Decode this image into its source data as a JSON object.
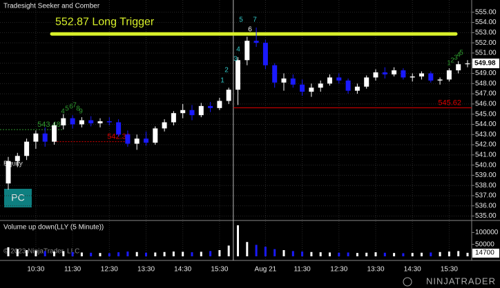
{
  "chart_data": [
    {
      "type": "candlestick",
      "title": "Tradesight Seeker and Comber",
      "categories": [
        null,
        null,
        null,
        "10:30",
        null,
        null,
        null,
        "11:30",
        null,
        null,
        null,
        "12:30",
        null,
        null,
        null,
        "13:30",
        null,
        null,
        null,
        "14:30",
        null,
        null,
        null,
        "15:30",
        null,
        null,
        null,
        null,
        "Aug 21",
        null,
        null,
        null,
        "11:30",
        null,
        null,
        null,
        "12:30",
        null,
        null,
        null,
        "13:30",
        null,
        null,
        null,
        "14:30",
        null,
        null,
        null,
        "15:30",
        null,
        null
      ],
      "open": [
        538.2,
        540.4,
        540.9,
        542.3,
        543.1,
        542.3,
        543.9,
        544.6,
        544.0,
        544.4,
        544.1,
        544.3,
        544.2,
        543.0,
        542.1,
        542.6,
        542.2,
        543.6,
        544.2,
        545.1,
        545.4,
        544.9,
        545.8,
        545.6,
        546.3,
        547.4,
        550.3,
        552.2,
        552.0,
        549.8,
        548.1,
        548.5,
        547.9,
        547.2,
        547.6,
        548.0,
        548.6,
        548.3,
        547.3,
        547.7,
        548.6,
        549.1,
        548.9,
        549.3,
        548.6,
        548.7,
        549.0,
        548.3,
        548.4,
        549.3,
        549.9
      ],
      "high": [
        540.8,
        541.2,
        542.6,
        543.4,
        543.7,
        544.2,
        545.0,
        544.9,
        544.7,
        544.8,
        544.6,
        544.7,
        544.5,
        543.4,
        543.0,
        543.3,
        543.8,
        544.5,
        545.3,
        546.0,
        545.9,
        546.1,
        546.2,
        546.6,
        547.6,
        550.6,
        552.6,
        553.5,
        552.3,
        550.0,
        549.0,
        548.9,
        548.4,
        548.0,
        548.3,
        548.9,
        549.0,
        548.5,
        548.0,
        548.8,
        549.4,
        549.6,
        549.6,
        549.5,
        549.0,
        549.2,
        549.2,
        548.6,
        549.5,
        550.2,
        550.3
      ],
      "low": [
        537.6,
        539.8,
        540.5,
        541.6,
        541.8,
        542.0,
        543.5,
        543.6,
        543.7,
        543.8,
        543.7,
        543.9,
        542.8,
        541.8,
        541.5,
        541.9,
        542.0,
        543.3,
        543.9,
        544.6,
        544.4,
        544.7,
        545.2,
        545.4,
        546.0,
        545.9,
        549.8,
        551.6,
        549.4,
        547.6,
        547.3,
        547.6,
        546.8,
        546.7,
        547.2,
        547.8,
        548.0,
        547.0,
        547.0,
        547.5,
        548.3,
        548.5,
        548.7,
        548.4,
        548.2,
        548.4,
        548.1,
        547.9,
        548.2,
        549.0,
        549.6
      ],
      "close": [
        540.4,
        540.9,
        542.3,
        543.1,
        542.3,
        543.9,
        544.6,
        544.0,
        544.4,
        544.1,
        544.3,
        544.2,
        543.0,
        542.1,
        542.6,
        542.2,
        543.6,
        544.2,
        545.1,
        545.4,
        544.9,
        545.8,
        545.6,
        546.3,
        547.4,
        550.3,
        552.2,
        552.0,
        549.8,
        548.1,
        548.5,
        547.9,
        547.2,
        547.6,
        548.0,
        548.6,
        548.3,
        547.3,
        547.7,
        548.6,
        549.1,
        548.9,
        549.3,
        548.6,
        548.7,
        549.0,
        548.3,
        548.4,
        549.3,
        549.9,
        549.98
      ],
      "up_color": "#ffffff",
      "down_color": "#1a1aff",
      "ylim": [
        534.7,
        556.0
      ],
      "yticks": [
        {
          "value": 535,
          "label": "535.00"
        },
        {
          "value": 536,
          "label": "536.00"
        },
        {
          "value": 537,
          "label": "537.00"
        },
        {
          "value": 538,
          "label": "538.00"
        },
        {
          "value": 539,
          "label": "539.00"
        },
        {
          "value": 540,
          "label": "540.00"
        },
        {
          "value": 541,
          "label": "541.00"
        },
        {
          "value": 542,
          "label": "542.00"
        },
        {
          "value": 543,
          "label": "543.00"
        },
        {
          "value": 544,
          "label": "544.00"
        },
        {
          "value": 545,
          "label": "545.00"
        },
        {
          "value": 546,
          "label": "546.00"
        },
        {
          "value": 547,
          "label": "547.00"
        },
        {
          "value": 548,
          "label": "548.00"
        },
        {
          "value": 549,
          "label": "549.00"
        },
        {
          "value": 550,
          "label": "550.00"
        },
        {
          "value": 551,
          "label": "551.00"
        },
        {
          "value": 552,
          "label": "552.00"
        },
        {
          "value": 553,
          "label": "553.00"
        },
        {
          "value": 554,
          "label": "554.00"
        },
        {
          "value": 555,
          "label": "555.00"
        }
      ],
      "grid": true,
      "trigger": {
        "value": 552.87,
        "label": "552.87 Long Trigger",
        "color": "#d8f02a"
      },
      "levels": [
        {
          "value": 545.62,
          "color": "#e00000",
          "style": "solid"
        },
        {
          "value": 542.3,
          "label": "542.30",
          "color": "#e00000",
          "style": "dotted"
        },
        {
          "value": 543.48,
          "label": "543.48",
          "color": "#2f9a2f",
          "style": "dotted"
        }
      ],
      "markers": [
        {
          "text": "1",
          "color": "#33cccc"
        },
        {
          "text": "2",
          "color": "#33cccc"
        },
        {
          "text": "3",
          "color": "#33cccc"
        },
        {
          "text": "4",
          "color": "#33cccc"
        },
        {
          "text": "5",
          "color": "#33cccc"
        },
        {
          "text": "7",
          "color": "#33cccc"
        },
        {
          "text": "6",
          "color": "#ffffff"
        },
        {
          "text": "4",
          "color": "#2f9a2f"
        },
        {
          "text": "5",
          "color": "#2f9a2f"
        },
        {
          "text": "6",
          "color": "#2f9a2f"
        },
        {
          "text": "7",
          "color": "#2f9a2f"
        },
        {
          "text": "8",
          "color": "#2f9a2f"
        },
        {
          "text": "9",
          "color": "#2f9a2f"
        },
        {
          "text": "1",
          "color": "#2f9a2f"
        },
        {
          "text": "2",
          "color": "#2f9a2f"
        },
        {
          "text": "3",
          "color": "#2f9a2f"
        },
        {
          "text": "4",
          "color": "#2f9a2f"
        },
        {
          "text": "5",
          "color": "#2f9a2f"
        }
      ]
    },
    {
      "type": "bar",
      "title": "Volume up down(LLY (5 Minute))",
      "values": [
        38000,
        30000,
        26000,
        24000,
        22000,
        20000,
        22000,
        18000,
        16000,
        15000,
        14000,
        13000,
        17000,
        20000,
        18000,
        15000,
        16000,
        18000,
        20000,
        19000,
        17000,
        19000,
        22000,
        26000,
        45000,
        130000,
        60000,
        48000,
        40000,
        30000,
        26000,
        22000,
        20000,
        18000,
        17000,
        16000,
        15000,
        16000,
        14000,
        15000,
        17000,
        15000,
        14000,
        13000,
        14000,
        15000,
        16000,
        18000,
        20000,
        22000,
        14700
      ],
      "ylim": [
        0,
        130000
      ],
      "yticks": [
        50000,
        100000
      ]
    }
  ],
  "ui": {
    "equity": "Equity",
    "button": "PC",
    "copyright": "© 2023 NinjaTrader, LLC",
    "brand": "NINJATRADER"
  }
}
